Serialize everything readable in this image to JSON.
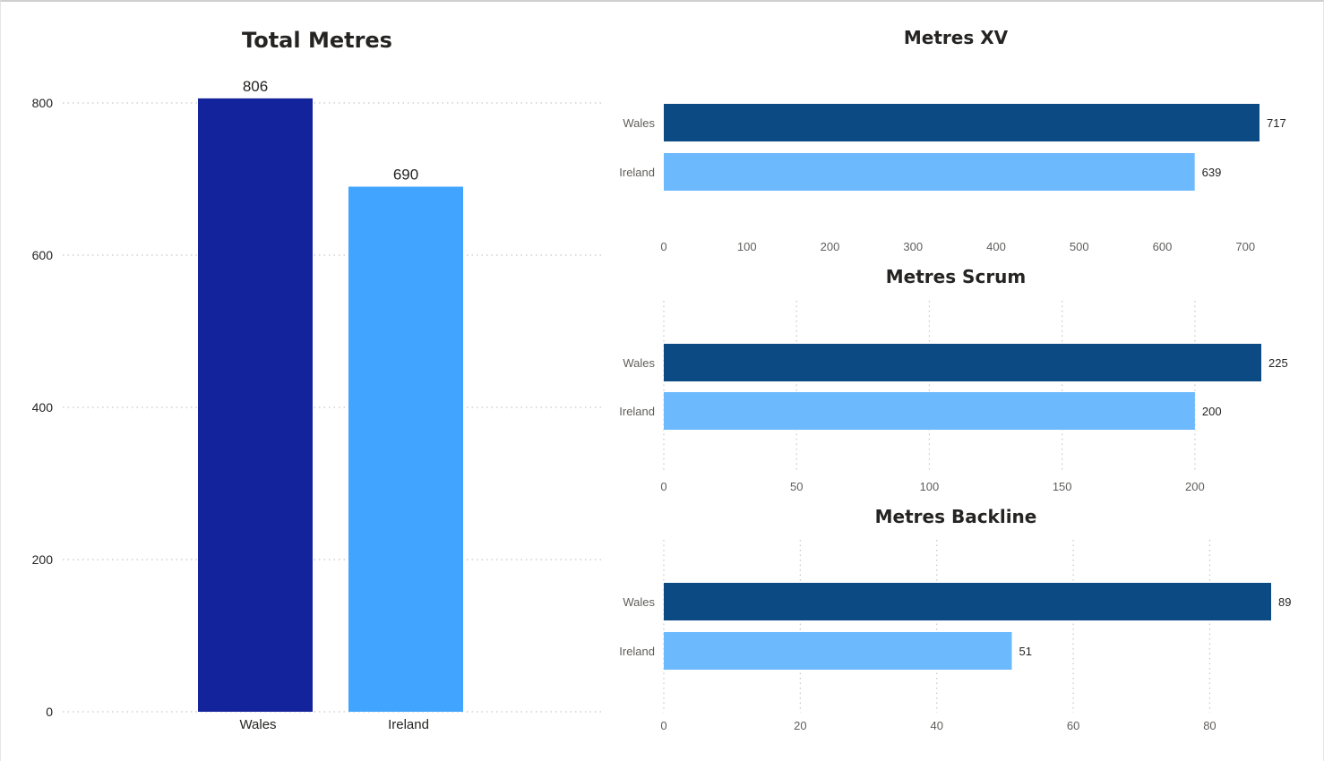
{
  "charts": [
    {
      "id": "total-metres",
      "chart_data": {
        "type": "bar",
        "title": "Total Metres",
        "categories": [
          "Wales",
          "Ireland"
        ],
        "values": [
          806,
          690
        ],
        "value_labels": [
          "806",
          "690"
        ],
        "yticks": [
          0,
          200,
          400,
          600,
          800
        ],
        "ytick_labels": [
          "0",
          "200",
          "400",
          "600",
          "800"
        ],
        "ylim": [
          0,
          810
        ],
        "grid": true,
        "colors": [
          "#13239b",
          "#41a4ff"
        ]
      }
    },
    {
      "id": "metres-xv",
      "chart_data": {
        "type": "bar",
        "orientation": "horizontal",
        "title": "Metres XV",
        "categories": [
          "Wales",
          "Ireland"
        ],
        "values": [
          717,
          639
        ],
        "value_labels": [
          "717",
          "639"
        ],
        "xticks": [
          0,
          100,
          200,
          300,
          400,
          500,
          600,
          700
        ],
        "xtick_labels": [
          "0",
          "100",
          "200",
          "300",
          "400",
          "500",
          "600",
          "700"
        ],
        "xlim": [
          0,
          717
        ],
        "grid": false,
        "colors": [
          "#0b4a83",
          "#6cb9fd"
        ]
      }
    },
    {
      "id": "metres-scrum",
      "chart_data": {
        "type": "bar",
        "orientation": "horizontal",
        "title": "Metres Scrum",
        "categories": [
          "Wales",
          "Ireland"
        ],
        "values": [
          225,
          200
        ],
        "value_labels": [
          "225",
          "200"
        ],
        "xticks": [
          0,
          50,
          100,
          150,
          200
        ],
        "xtick_labels": [
          "0",
          "50",
          "100",
          "150",
          "200"
        ],
        "xlim": [
          0,
          225
        ],
        "grid": true,
        "colors": [
          "#0b4a83",
          "#6cb9fd"
        ]
      }
    },
    {
      "id": "metres-backline",
      "chart_data": {
        "type": "bar",
        "orientation": "horizontal",
        "title": "Metres Backline",
        "categories": [
          "Wales",
          "Ireland"
        ],
        "values": [
          89,
          51
        ],
        "value_labels": [
          "89",
          "51"
        ],
        "xticks": [
          0,
          20,
          40,
          60,
          80
        ],
        "xtick_labels": [
          "0",
          "20",
          "40",
          "60",
          "80"
        ],
        "xlim": [
          0,
          89
        ],
        "grid": true,
        "colors": [
          "#0b4a83",
          "#6cb9fd"
        ]
      }
    }
  ]
}
